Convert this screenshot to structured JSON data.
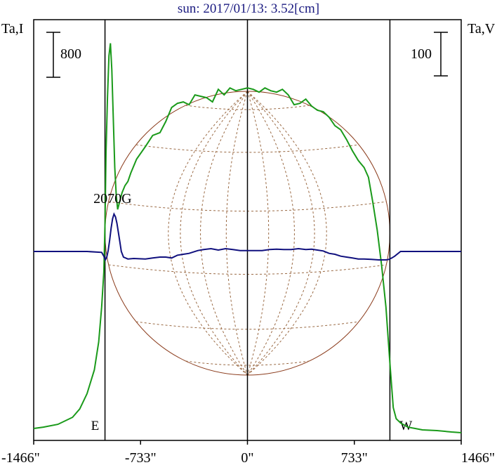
{
  "chart_data": {
    "type": "line",
    "title": "sun: 2017/01/13: 3.52[cm]",
    "ylabel_left": "Ta,I",
    "ylabel_right": "Ta,V",
    "scale_left": "800",
    "scale_right": "100",
    "x_ticks": [
      "-1466\"",
      "-733\"",
      "0\"",
      "733\"",
      "1466\""
    ],
    "x_tick_values": [
      -1466,
      -733,
      0,
      733,
      1466
    ],
    "xlim": [
      -1466,
      1466
    ],
    "limb_markers": [
      {
        "label": "E",
        "x": -977
      },
      {
        "label": "W",
        "x": 977
      }
    ],
    "annotation": {
      "label": "2070G",
      "x": -912
    },
    "sun_disk_radius": 977,
    "series": [
      {
        "color": "#1a9a1a",
        "x": [
          -1466,
          -1400,
          -1300,
          -1200,
          -1150,
          -1100,
          -1050,
          -1020,
          -1000,
          -985,
          -977,
          -970,
          -960,
          -950,
          -940,
          -930,
          -920,
          -910,
          -900,
          -890,
          -880,
          -860,
          -840,
          -820,
          -800,
          -760,
          -700,
          -650,
          -600,
          -560,
          -520,
          -480,
          -440,
          -400,
          -360,
          -320,
          -280,
          -240,
          -200,
          -160,
          -120,
          -80,
          -40,
          0,
          40,
          80,
          120,
          160,
          200,
          240,
          280,
          320,
          360,
          400,
          440,
          480,
          520,
          560,
          600,
          640,
          680,
          720,
          760,
          800,
          830,
          860,
          890,
          920,
          950,
          977,
          1000,
          1020,
          1050,
          1100,
          1150,
          1200,
          1300,
          1400,
          1466
        ],
        "y": [
          30,
          40,
          60,
          110,
          170,
          280,
          450,
          650,
          900,
          1150,
          1500,
          2000,
          2400,
          2700,
          2790,
          2600,
          2250,
          1900,
          1700,
          1600,
          1640,
          1720,
          1770,
          1800,
          1860,
          1960,
          2050,
          2130,
          2150,
          2230,
          2330,
          2360,
          2370,
          2350,
          2420,
          2410,
          2400,
          2370,
          2460,
          2420,
          2470,
          2450,
          2460,
          2470,
          2460,
          2440,
          2470,
          2450,
          2440,
          2460,
          2420,
          2350,
          2360,
          2390,
          2340,
          2310,
          2300,
          2260,
          2200,
          2170,
          2100,
          2020,
          1950,
          1900,
          1830,
          1650,
          1450,
          1200,
          900,
          500,
          180,
          100,
          70,
          40,
          30,
          20,
          15,
          5,
          0
        ]
      },
      {
        "color": "#10107e",
        "x": [
          -1466,
          -1300,
          -1100,
          -1000,
          -985,
          -975,
          -965,
          -955,
          -945,
          -935,
          -925,
          -915,
          -905,
          -895,
          -885,
          -875,
          -865,
          -850,
          -820,
          -780,
          -700,
          -650,
          -600,
          -560,
          -520,
          -480,
          -440,
          -400,
          -340,
          -300,
          -250,
          -200,
          -150,
          -100,
          -50,
          0,
          40,
          100,
          150,
          200,
          250,
          300,
          350,
          400,
          440,
          480,
          520,
          560,
          600,
          640,
          680,
          720,
          760,
          800,
          850,
          900,
          950,
          970,
          990,
          1010,
          1050,
          1100,
          1200,
          1300,
          1466
        ],
        "y": [
          0,
          0,
          0,
          -10,
          -50,
          -90,
          -60,
          10,
          120,
          250,
          350,
          400,
          370,
          300,
          200,
          100,
          0,
          -60,
          -80,
          -75,
          -80,
          -70,
          -60,
          -60,
          -70,
          -40,
          -30,
          -20,
          10,
          20,
          30,
          15,
          30,
          20,
          10,
          10,
          10,
          10,
          20,
          25,
          20,
          20,
          30,
          20,
          25,
          15,
          5,
          -20,
          -30,
          -50,
          -60,
          -70,
          -80,
          -80,
          -85,
          -90,
          -90,
          -85,
          -70,
          -50,
          0,
          0,
          0,
          0,
          0
        ]
      }
    ]
  }
}
